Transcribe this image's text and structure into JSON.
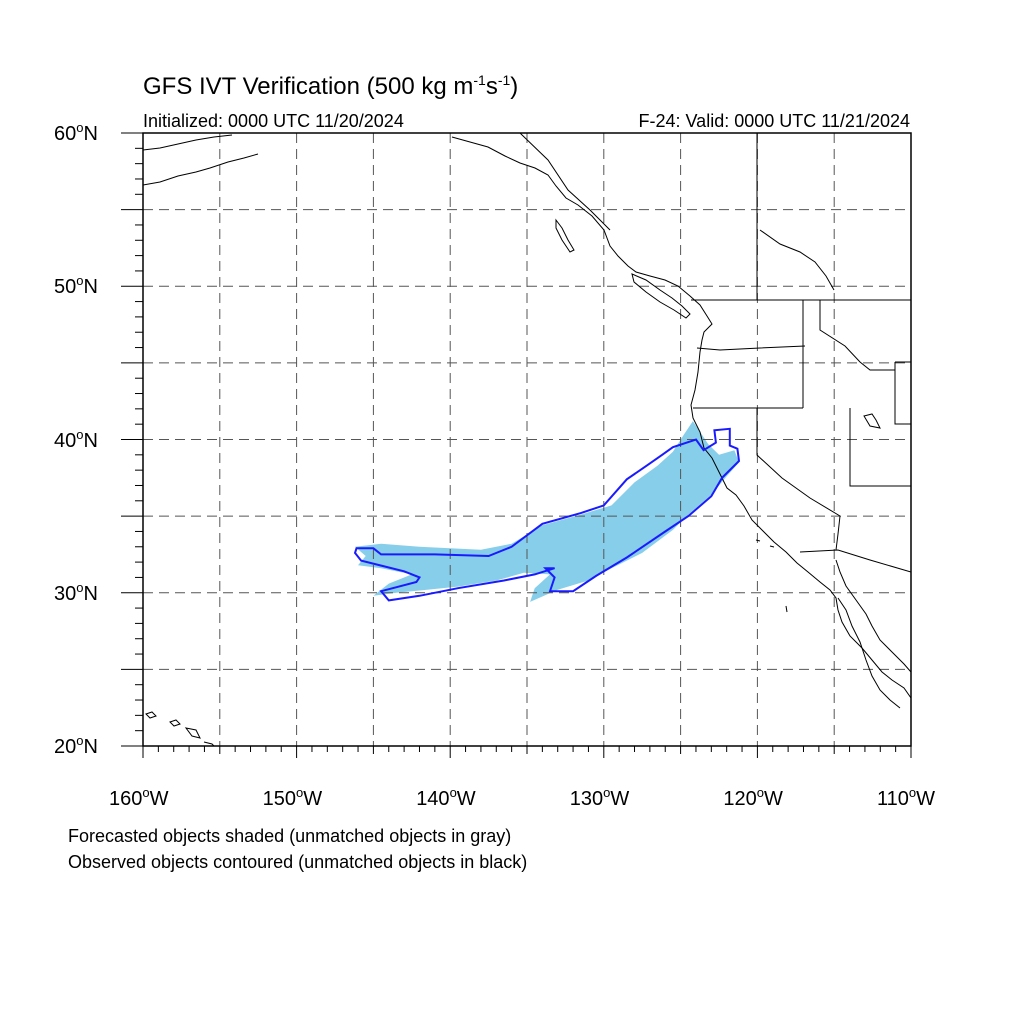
{
  "title": {
    "main": "GFS IVT Verification (500 kg m",
    "sup1": "-1",
    "mid": "s",
    "sup2": "-1",
    "end": ")"
  },
  "subtitle": {
    "left": "Initialized: 0000 UTC 11/20/2024",
    "right": "F-24: Valid: 0000 UTC 11/21/2024"
  },
  "footer": {
    "line1": "Forecasted objects shaded (unmatched objects in gray)",
    "line2": "Observed objects contoured (unmatched objects in black)"
  },
  "map": {
    "lon_range": [
      -160,
      -110
    ],
    "lat_range": [
      20,
      60
    ],
    "lon_labels": [
      {
        "num": "160",
        "hemi": "W"
      },
      {
        "num": "150",
        "hemi": "W"
      },
      {
        "num": "140",
        "hemi": "W"
      },
      {
        "num": "130",
        "hemi": "W"
      },
      {
        "num": "120",
        "hemi": "W"
      },
      {
        "num": "110",
        "hemi": "W"
      }
    ],
    "lat_labels": [
      {
        "num": "20",
        "hemi": "N"
      },
      {
        "num": "30",
        "hemi": "N"
      },
      {
        "num": "40",
        "hemi": "N"
      },
      {
        "num": "50",
        "hemi": "N"
      },
      {
        "num": "60",
        "hemi": "N"
      }
    ],
    "grid_spacing_deg": 5,
    "grid_style": "dashed",
    "colors": {
      "forecast_fill": "#87ceeb",
      "observed_contour": "#1a1aff",
      "coastline": "#000000",
      "grid": "#555555"
    },
    "observed_contour_lonlat": [
      [
        -146.1,
        32.9
      ],
      [
        -145.0,
        32.9
      ],
      [
        -144.5,
        32.5
      ],
      [
        -141.0,
        32.5
      ],
      [
        -137.5,
        32.4
      ],
      [
        -136.0,
        33.0
      ],
      [
        -134.0,
        34.5
      ],
      [
        -132.0,
        35.0
      ],
      [
        -130.0,
        35.4
      ],
      [
        -128.5,
        36.7
      ],
      [
        -127.0,
        37.6
      ],
      [
        -126.0,
        38.2
      ],
      [
        -125.3,
        39.2
      ],
      [
        -124.4,
        40.0
      ],
      [
        -124.3,
        40.7
      ],
      [
        -124.1,
        42.2
      ],
      [
        -124.5,
        41.8
      ],
      [
        -125.3,
        41.2
      ],
      [
        -125.9,
        40.2
      ],
      [
        -126.5,
        39.5
      ],
      [
        -127.0,
        38.5
      ],
      [
        -128.0,
        37.5
      ],
      [
        -129.5,
        36.8
      ],
      [
        -131.0,
        35.8
      ],
      [
        -133.0,
        35.2
      ],
      [
        -135.0,
        34.8
      ],
      [
        -137.0,
        34.3
      ],
      [
        -140.0,
        33.5
      ],
      [
        -143.0,
        33.2
      ],
      [
        -146.0,
        33.2
      ]
    ],
    "observed_contour_main_lonlat": [
      [
        -146.2,
        32.6
      ],
      [
        -145.8,
        32.1
      ],
      [
        -143.0,
        31.4
      ],
      [
        -142.0,
        31.0
      ],
      [
        -142.2,
        30.7
      ],
      [
        -144.5,
        30.1
      ],
      [
        -144.0,
        29.5
      ],
      [
        -142.0,
        29.8
      ],
      [
        -139.5,
        30.3
      ],
      [
        -136.5,
        30.8
      ],
      [
        -134.5,
        31.2
      ],
      [
        -133.2,
        31.6
      ],
      [
        -133.8,
        31.6
      ],
      [
        -133.2,
        31.0
      ],
      [
        -133.5,
        30.1
      ],
      [
        -132.0,
        30.1
      ],
      [
        -130.5,
        31.1
      ],
      [
        -128.5,
        32.3
      ],
      [
        -126.0,
        34.0
      ],
      [
        -124.5,
        35.0
      ],
      [
        -123.0,
        36.3
      ],
      [
        -122.3,
        37.5
      ],
      [
        -121.2,
        38.6
      ],
      [
        -121.3,
        39.4
      ],
      [
        -121.8,
        39.6
      ],
      [
        -121.8,
        40.7
      ],
      [
        -122.8,
        40.6
      ],
      [
        -122.7,
        39.8
      ],
      [
        -123.5,
        39.3
      ],
      [
        -124.0,
        40.0
      ],
      [
        -125.5,
        39.5
      ],
      [
        -126.2,
        39.0
      ],
      [
        -127.2,
        38.3
      ],
      [
        -128.5,
        37.4
      ],
      [
        -130.0,
        35.7
      ],
      [
        -131.5,
        35.2
      ],
      [
        -134.0,
        34.5
      ],
      [
        -136.0,
        33.0
      ],
      [
        -137.5,
        32.4
      ],
      [
        -141.0,
        32.5
      ],
      [
        -144.5,
        32.5
      ],
      [
        -145.0,
        32.9
      ],
      [
        -146.1,
        32.9
      ],
      [
        -146.2,
        32.6
      ]
    ],
    "forecast_object_lonlat": [
      [
        -146.2,
        33.0
      ],
      [
        -144.5,
        33.2
      ],
      [
        -142.0,
        33.0
      ],
      [
        -138.0,
        32.8
      ],
      [
        -136.0,
        33.2
      ],
      [
        -134.0,
        34.4
      ],
      [
        -131.5,
        35.1
      ],
      [
        -129.5,
        35.7
      ],
      [
        -128.0,
        37.2
      ],
      [
        -126.5,
        38.3
      ],
      [
        -125.5,
        39.2
      ],
      [
        -124.8,
        40.3
      ],
      [
        -124.2,
        41.2
      ],
      [
        -123.8,
        40.6
      ],
      [
        -123.2,
        39.7
      ],
      [
        -122.5,
        39.0
      ],
      [
        -121.5,
        39.3
      ],
      [
        -121.2,
        38.5
      ],
      [
        -122.0,
        37.6
      ],
      [
        -123.0,
        36.4
      ],
      [
        -124.5,
        35.1
      ],
      [
        -125.5,
        34.1
      ],
      [
        -127.5,
        32.6
      ],
      [
        -129.5,
        31.6
      ],
      [
        -131.0,
        30.8
      ],
      [
        -133.0,
        30.2
      ],
      [
        -134.8,
        29.4
      ],
      [
        -134.5,
        30.3
      ],
      [
        -133.5,
        31.2
      ],
      [
        -135.2,
        31.3
      ],
      [
        -137.0,
        30.8
      ],
      [
        -139.5,
        30.4
      ],
      [
        -141.5,
        30.2
      ],
      [
        -143.5,
        30.0
      ],
      [
        -145.0,
        29.8
      ],
      [
        -144.0,
        30.6
      ],
      [
        -142.5,
        31.2
      ],
      [
        -144.5,
        31.6
      ],
      [
        -146.0,
        31.8
      ],
      [
        -145.5,
        32.4
      ]
    ]
  }
}
